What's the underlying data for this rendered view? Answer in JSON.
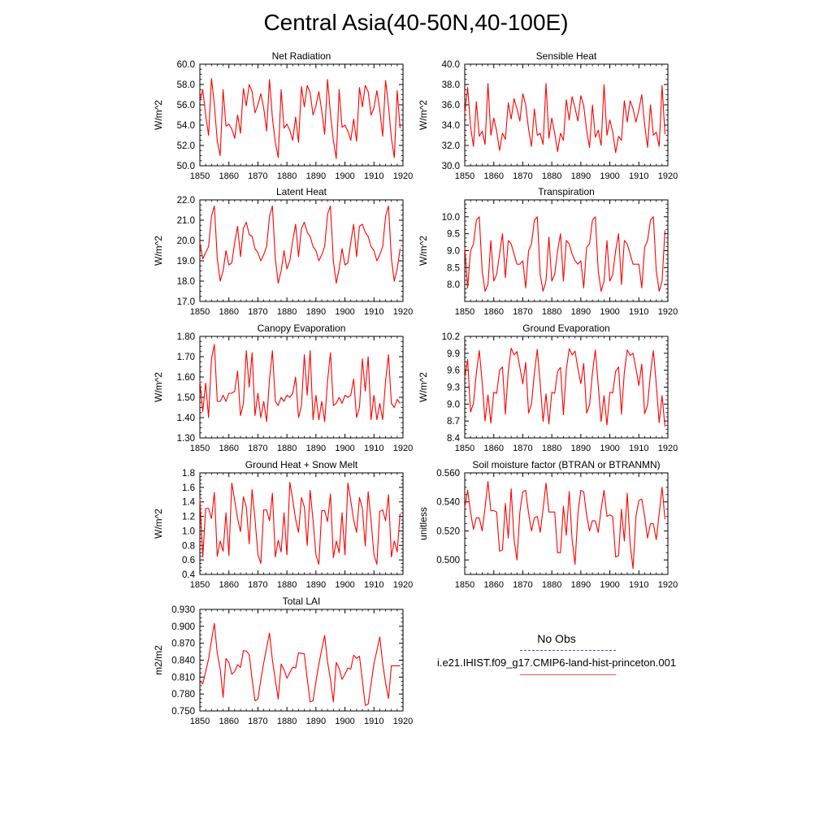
{
  "title": "Central Asia(40-50N,40-100E)",
  "legend": {
    "entries": [
      {
        "label": "No Obs",
        "color": "#3b3bbf",
        "style": "dashed"
      },
      {
        "label": "i.e21.IHIST.f09_g17.CMIP6-land-hist-princeton.001",
        "color": "#ff0000",
        "style": "solid"
      }
    ]
  },
  "chart_data": [
    {
      "type": "line",
      "title": "Net Radiation",
      "xlabel": "",
      "ylabel": "W/m^2",
      "xlim": [
        1850,
        1920
      ],
      "ylim": [
        50.0,
        60.0
      ],
      "xticks": [
        1850,
        1860,
        1870,
        1880,
        1890,
        1900,
        1910,
        1920
      ],
      "yticks": [
        "50.0",
        "52.0",
        "54.0",
        "56.0",
        "58.0",
        "60.0"
      ],
      "series": [
        {
          "color": "#ff0000",
          "x_start": 1850,
          "x_step": 1,
          "values": [
            56.3,
            57.5,
            55.0,
            53.0,
            58.6,
            56.0,
            52.4,
            51.0,
            57.5,
            53.9,
            54.1,
            53.6,
            52.7,
            55.0,
            53.2,
            57.6,
            55.9,
            58.0,
            57.3,
            55.2,
            56.0,
            57.1,
            55.7,
            53.4,
            58.5,
            54.7,
            52.3,
            50.8,
            57.5,
            53.7,
            54.1,
            53.5,
            52.5,
            54.8,
            52.3,
            57.8,
            55.8,
            57.9,
            57.2,
            55.0,
            55.9,
            57.3,
            55.4,
            53.1,
            58.5,
            55.1,
            52.5,
            50.7,
            57.5,
            53.8,
            54.0,
            53.4,
            52.5,
            54.6,
            52.4,
            57.7,
            55.8,
            57.9,
            57.3,
            55.0,
            55.7,
            57.4,
            55.5,
            52.9,
            58.4,
            55.9,
            52.7,
            50.8,
            57.4,
            53.7
          ]
        }
      ]
    },
    {
      "type": "line",
      "title": "Sensible Heat",
      "xlabel": "",
      "ylabel": "W/m^2",
      "xlim": [
        1850,
        1920
      ],
      "ylim": [
        30.0,
        40.0
      ],
      "xticks": [
        1850,
        1860,
        1870,
        1880,
        1890,
        1900,
        1910,
        1920
      ],
      "yticks": [
        "30.0",
        "32.0",
        "34.0",
        "36.0",
        "38.0",
        "40.0"
      ],
      "series": [
        {
          "color": "#ff0000",
          "x_start": 1850,
          "x_step": 1,
          "values": [
            35.2,
            37.7,
            33.9,
            31.9,
            36.3,
            32.9,
            33.4,
            32.1,
            38.1,
            33.0,
            34.7,
            33.4,
            31.5,
            33.2,
            32.6,
            36.2,
            34.6,
            36.6,
            35.6,
            34.4,
            37.1,
            36.0,
            33.6,
            31.9,
            35.6,
            33.0,
            33.2,
            32.1,
            38.1,
            32.7,
            34.7,
            33.2,
            31.4,
            33.2,
            32.5,
            36.5,
            34.5,
            36.8,
            35.7,
            34.4,
            36.9,
            35.9,
            33.5,
            31.8,
            36.0,
            32.8,
            33.5,
            32.0,
            38.0,
            33.0,
            34.5,
            33.3,
            31.3,
            32.9,
            32.5,
            36.4,
            34.3,
            36.4,
            35.6,
            34.3,
            35.5,
            37.0,
            34.0,
            31.8,
            36.0,
            33.0,
            33.3,
            31.9,
            37.9,
            33.1
          ]
        }
      ]
    },
    {
      "type": "line",
      "title": "Latent Heat",
      "xlabel": "",
      "ylabel": "W/m^2",
      "xlim": [
        1850,
        1920
      ],
      "ylim": [
        17.0,
        22.0
      ],
      "xticks": [
        1850,
        1860,
        1870,
        1880,
        1890,
        1900,
        1910,
        1920
      ],
      "yticks": [
        "17.0",
        "18.0",
        "19.0",
        "20.0",
        "21.0",
        "22.0"
      ],
      "series": [
        {
          "color": "#ff0000",
          "x_start": 1850,
          "x_step": 1,
          "values": [
            19.9,
            19.1,
            19.4,
            19.7,
            21.2,
            21.7,
            19.1,
            18.0,
            18.5,
            19.5,
            18.8,
            18.9,
            19.9,
            20.7,
            19.2,
            20.6,
            20.9,
            20.3,
            20.2,
            19.6,
            19.4,
            19.0,
            19.3,
            19.7,
            21.2,
            21.7,
            19.1,
            17.9,
            18.5,
            19.5,
            18.6,
            19.0,
            20.0,
            20.8,
            19.2,
            20.6,
            20.9,
            20.4,
            20.2,
            19.7,
            19.5,
            19.0,
            19.3,
            19.7,
            21.3,
            21.7,
            19.0,
            17.9,
            18.6,
            19.6,
            18.8,
            18.9,
            19.9,
            20.8,
            19.2,
            20.7,
            20.8,
            20.4,
            20.2,
            19.7,
            19.5,
            19.0,
            19.3,
            19.7,
            21.2,
            21.7,
            19.1,
            18.0,
            18.6,
            19.6
          ]
        }
      ]
    },
    {
      "type": "line",
      "title": "Transpiration",
      "xlabel": "",
      "ylabel": "W/m^2",
      "xlim": [
        1850,
        1920
      ],
      "ylim": [
        7.5,
        10.5
      ],
      "xticks": [
        1850,
        1860,
        1870,
        1880,
        1890,
        1900,
        1910,
        1920
      ],
      "yticks": [
        "8.0",
        "8.5",
        "9.0",
        "9.5",
        "10.0"
      ],
      "series": [
        {
          "color": "#ff0000",
          "x_start": 1850,
          "x_step": 1,
          "values": [
            9.1,
            7.9,
            9.0,
            9.2,
            9.9,
            10.0,
            8.4,
            7.8,
            8.0,
            9.3,
            8.1,
            8.3,
            8.9,
            9.5,
            8.2,
            9.3,
            9.2,
            8.9,
            8.6,
            8.6,
            8.7,
            7.9,
            9.0,
            9.2,
            9.9,
            10.0,
            8.3,
            7.8,
            8.1,
            9.4,
            8.1,
            8.3,
            9.0,
            9.5,
            8.1,
            9.3,
            9.2,
            8.9,
            8.7,
            8.6,
            8.7,
            7.9,
            9.1,
            9.2,
            9.9,
            10.0,
            8.4,
            7.8,
            8.1,
            9.3,
            8.1,
            8.3,
            9.0,
            9.5,
            8.0,
            9.3,
            9.2,
            8.9,
            8.6,
            8.6,
            8.6,
            7.9,
            9.1,
            9.3,
            9.9,
            10.0,
            8.4,
            7.8,
            8.1,
            9.6
          ]
        }
      ]
    },
    {
      "type": "line",
      "title": "Canopy Evaporation",
      "xlabel": "",
      "ylabel": "W/m^2",
      "xlim": [
        1850,
        1920
      ],
      "ylim": [
        1.3,
        1.8
      ],
      "xticks": [
        1850,
        1860,
        1870,
        1880,
        1890,
        1900,
        1910,
        1920
      ],
      "yticks": [
        "1.30",
        "1.40",
        "1.50",
        "1.60",
        "1.70",
        "1.80"
      ],
      "series": [
        {
          "color": "#ff0000",
          "x_start": 1850,
          "x_step": 1,
          "values": [
            1.58,
            1.43,
            1.57,
            1.4,
            1.69,
            1.76,
            1.48,
            1.48,
            1.51,
            1.48,
            1.52,
            1.52,
            1.53,
            1.63,
            1.41,
            1.47,
            1.73,
            1.55,
            1.72,
            1.41,
            1.52,
            1.4,
            1.48,
            1.38,
            1.59,
            1.73,
            1.48,
            1.46,
            1.5,
            1.48,
            1.51,
            1.5,
            1.52,
            1.6,
            1.4,
            1.46,
            1.71,
            1.51,
            1.73,
            1.39,
            1.51,
            1.39,
            1.48,
            1.38,
            1.58,
            1.72,
            1.46,
            1.47,
            1.5,
            1.47,
            1.51,
            1.5,
            1.51,
            1.59,
            1.4,
            1.45,
            1.69,
            1.53,
            1.7,
            1.39,
            1.51,
            1.39,
            1.47,
            1.39,
            1.58,
            1.71,
            1.47,
            1.45,
            1.49,
            1.47
          ]
        }
      ]
    },
    {
      "type": "line",
      "title": "Ground Evaporation",
      "xlabel": "",
      "ylabel": "W/m^2",
      "xlim": [
        1850,
        1920
      ],
      "ylim": [
        8.4,
        10.2
      ],
      "xticks": [
        1850,
        1860,
        1870,
        1880,
        1890,
        1900,
        1910,
        1920
      ],
      "yticks": [
        "8.4",
        "8.7",
        "9.0",
        "9.3",
        "9.6",
        "9.9",
        "10.2"
      ],
      "series": [
        {
          "color": "#ff0000",
          "x_start": 1850,
          "x_step": 1,
          "values": [
            9.47,
            9.79,
            8.86,
            9.01,
            9.55,
            9.95,
            9.39,
            8.7,
            9.16,
            8.66,
            9.21,
            9.19,
            9.6,
            9.66,
            8.82,
            9.58,
            9.99,
            9.87,
            9.93,
            9.65,
            9.36,
            9.74,
            8.84,
            9.0,
            9.55,
            9.97,
            9.36,
            8.69,
            9.18,
            8.65,
            9.21,
            9.19,
            9.58,
            9.65,
            8.81,
            9.61,
            9.98,
            9.87,
            9.94,
            9.63,
            9.36,
            9.72,
            8.84,
            8.98,
            9.55,
            9.96,
            9.33,
            8.69,
            9.15,
            8.63,
            9.21,
            9.2,
            9.58,
            9.66,
            8.82,
            9.57,
            9.96,
            9.86,
            9.9,
            9.63,
            9.33,
            9.71,
            8.83,
            8.98,
            9.54,
            9.95,
            9.35,
            8.67,
            9.15,
            8.6
          ]
        }
      ]
    },
    {
      "type": "line",
      "title": "Ground Heat + Snow Melt",
      "xlabel": "",
      "ylabel": "W/m^2",
      "xlim": [
        1850,
        1920
      ],
      "ylim": [
        0.4,
        1.8
      ],
      "xticks": [
        1850,
        1860,
        1870,
        1880,
        1890,
        1900,
        1910,
        1920
      ],
      "yticks": [
        "0.4",
        "0.6",
        "0.8",
        "1.0",
        "1.2",
        "1.4",
        "1.6",
        "1.8"
      ],
      "series": [
        {
          "color": "#ff0000",
          "x_start": 1850,
          "x_step": 1,
          "values": [
            1.45,
            0.64,
            1.31,
            1.31,
            1.17,
            1.53,
            0.65,
            0.86,
            0.72,
            1.25,
            0.66,
            1.66,
            1.42,
            1.17,
            0.99,
            1.47,
            1.33,
            0.82,
            1.57,
            1.16,
            0.68,
            0.55,
            1.29,
            1.29,
            1.14,
            1.52,
            0.64,
            0.87,
            0.71,
            1.25,
            0.67,
            1.67,
            1.43,
            1.16,
            0.98,
            1.46,
            1.33,
            0.8,
            1.56,
            1.15,
            0.67,
            0.54,
            1.28,
            1.28,
            1.13,
            1.51,
            0.63,
            0.86,
            0.7,
            1.25,
            0.67,
            1.66,
            1.42,
            1.15,
            0.98,
            1.46,
            1.31,
            0.79,
            1.54,
            1.14,
            0.67,
            0.54,
            1.27,
            1.29,
            1.14,
            1.5,
            0.64,
            0.86,
            0.71,
            1.24
          ]
        }
      ]
    },
    {
      "type": "line",
      "title": "Soil moisture factor (BTRAN or BTRANMN)",
      "xlabel": "",
      "ylabel": "unitless",
      "xlim": [
        1850,
        1920
      ],
      "ylim": [
        0.49,
        0.56
      ],
      "xticks": [
        1850,
        1860,
        1870,
        1880,
        1890,
        1900,
        1910,
        1920
      ],
      "yticks": [
        "0.500",
        "0.520",
        "0.540",
        "0.560"
      ],
      "series": [
        {
          "color": "#ff0000",
          "x_start": 1850,
          "x_step": 1,
          "values": [
            0.536,
            0.548,
            0.533,
            0.521,
            0.529,
            0.529,
            0.52,
            0.536,
            0.554,
            0.534,
            0.534,
            0.533,
            0.506,
            0.507,
            0.539,
            0.515,
            0.549,
            0.514,
            0.5,
            0.533,
            0.547,
            0.548,
            0.532,
            0.52,
            0.529,
            0.53,
            0.519,
            0.535,
            0.553,
            0.533,
            0.533,
            0.533,
            0.505,
            0.505,
            0.537,
            0.517,
            0.547,
            0.514,
            0.497,
            0.532,
            0.548,
            0.547,
            0.531,
            0.52,
            0.527,
            0.527,
            0.519,
            0.535,
            0.548,
            0.53,
            0.531,
            0.53,
            0.502,
            0.503,
            0.535,
            0.513,
            0.546,
            0.511,
            0.494,
            0.53,
            0.541,
            0.542,
            0.53,
            0.515,
            0.525,
            0.525,
            0.514,
            0.532,
            0.55,
            0.528
          ]
        }
      ]
    },
    {
      "type": "line",
      "title": "Total LAI",
      "xlabel": "",
      "ylabel": "m2/m2",
      "xlim": [
        1850,
        1920
      ],
      "ylim": [
        0.75,
        0.93
      ],
      "xticks": [
        1850,
        1860,
        1870,
        1880,
        1890,
        1900,
        1910,
        1920
      ],
      "yticks": [
        "0.750",
        "0.780",
        "0.810",
        "0.840",
        "0.870",
        "0.900",
        "0.930"
      ],
      "series": [
        {
          "color": "#ff0000",
          "x_start": 1850,
          "x_step": 1,
          "values": [
            0.802,
            0.798,
            0.82,
            0.842,
            0.875,
            0.905,
            0.852,
            0.825,
            0.774,
            0.843,
            0.836,
            0.815,
            0.82,
            0.832,
            0.827,
            0.857,
            0.856,
            0.85,
            0.806,
            0.768,
            0.771,
            0.805,
            0.835,
            0.862,
            0.888,
            0.84,
            0.805,
            0.771,
            0.833,
            0.823,
            0.808,
            0.818,
            0.828,
            0.826,
            0.853,
            0.852,
            0.851,
            0.807,
            0.766,
            0.768,
            0.802,
            0.833,
            0.859,
            0.884,
            0.837,
            0.806,
            0.766,
            0.836,
            0.825,
            0.806,
            0.815,
            0.826,
            0.824,
            0.849,
            0.843,
            0.847,
            0.804,
            0.76,
            0.762,
            0.798,
            0.834,
            0.857,
            0.881,
            0.834,
            0.8,
            0.772,
            0.83,
            0.83,
            0.83,
            0.83
          ]
        }
      ]
    }
  ]
}
